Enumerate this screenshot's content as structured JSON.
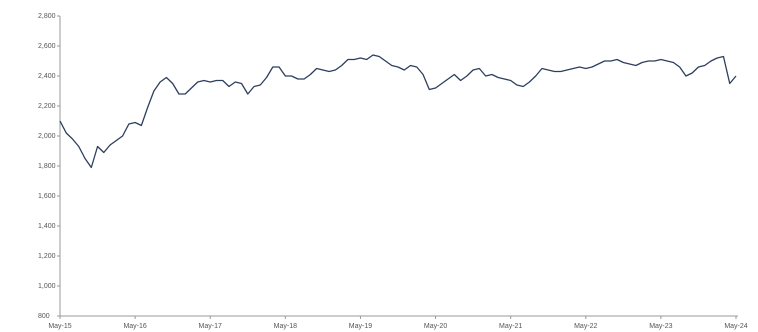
{
  "chart_data": {
    "type": "line",
    "color": "#2d3e5e",
    "categories": [
      "May-15",
      null,
      null,
      null,
      null,
      null,
      null,
      null,
      null,
      null,
      null,
      null,
      "May-16",
      null,
      null,
      null,
      null,
      null,
      null,
      null,
      null,
      null,
      null,
      null,
      "May-17",
      null,
      null,
      null,
      null,
      null,
      null,
      null,
      null,
      null,
      null,
      null,
      "May-18",
      null,
      null,
      null,
      null,
      null,
      null,
      null,
      null,
      null,
      null,
      null,
      "May-19",
      null,
      null,
      null,
      null,
      null,
      null,
      null,
      null,
      null,
      null,
      null,
      "May-20",
      null,
      null,
      null,
      null,
      null,
      null,
      null,
      null,
      null,
      null,
      null,
      "May-21",
      null,
      null,
      null,
      null,
      null,
      null,
      null,
      null,
      null,
      null,
      null,
      "May-22",
      null,
      null,
      null,
      null,
      null,
      null,
      null,
      null,
      null,
      null,
      null,
      "May-23",
      null,
      null,
      null,
      null,
      null,
      null,
      null,
      null,
      null,
      null,
      null,
      "May-24"
    ],
    "values": [
      2100,
      2020,
      1980,
      1930,
      1850,
      1790,
      1930,
      1890,
      1940,
      1970,
      2000,
      2080,
      2090,
      2070,
      2190,
      2300,
      2360,
      2390,
      2350,
      2280,
      2280,
      2320,
      2360,
      2370,
      2360,
      2370,
      2370,
      2330,
      2360,
      2350,
      2280,
      2330,
      2340,
      2390,
      2460,
      2460,
      2400,
      2400,
      2380,
      2380,
      2410,
      2450,
      2440,
      2430,
      2440,
      2470,
      2510,
      2510,
      2520,
      2510,
      2540,
      2530,
      2500,
      2470,
      2460,
      2440,
      2470,
      2460,
      2410,
      2310,
      2320,
      2350,
      2380,
      2410,
      2370,
      2400,
      2440,
      2450,
      2400,
      2410,
      2390,
      2380,
      2370,
      2340,
      2330,
      2360,
      2400,
      2450,
      2440,
      2430,
      2430,
      2440,
      2450,
      2460,
      2450,
      2460,
      2480,
      2500,
      2500,
      2510,
      2490,
      2480,
      2470,
      2490,
      2500,
      2500,
      2510,
      2500,
      2490,
      2460,
      2400,
      2420,
      2460,
      2470,
      2500,
      2520,
      2530,
      2350,
      2400
    ],
    "ylim": [
      800,
      2800
    ],
    "yticks": [
      800,
      {
        "value": 1000,
        "label": "1,000"
      },
      {
        "value": 1200,
        "label": "1,200"
      },
      {
        "value": 1400,
        "label": "1,400"
      },
      {
        "value": 1600,
        "label": "1,600"
      },
      {
        "value": 1800,
        "label": "1,800"
      },
      {
        "value": 2000,
        "label": "2,000"
      },
      {
        "value": 2200,
        "label": "2,200"
      },
      {
        "value": 2400,
        "label": "2,400"
      },
      {
        "value": 2600,
        "label": "2,600"
      },
      {
        "value": 2800,
        "label": "2,800"
      }
    ],
    "grid": false
  }
}
